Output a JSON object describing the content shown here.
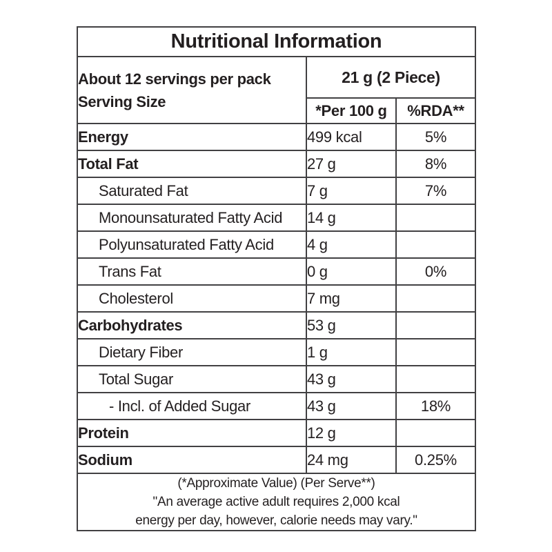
{
  "title": "Nutritional Information",
  "header": {
    "servings_line": "About 12 servings per pack",
    "serving_size_line": "Serving Size",
    "serving_amount": "21 g (2 Piece)",
    "per_100g_label": "*Per 100 g",
    "rda_label": "%RDA**"
  },
  "rows": [
    {
      "label": "Energy",
      "style": "bold",
      "per_100g": "499 kcal",
      "rda": "5%"
    },
    {
      "label": "Total Fat",
      "style": "bold",
      "per_100g": "27 g",
      "rda": "8%"
    },
    {
      "label": "Saturated Fat",
      "style": "sub",
      "per_100g": "7 g",
      "rda": "7%"
    },
    {
      "label": "Monounsaturated Fatty Acid",
      "style": "sub",
      "per_100g": "14 g",
      "rda": ""
    },
    {
      "label": "Polyunsaturated Fatty Acid",
      "style": "sub",
      "per_100g": "4 g",
      "rda": ""
    },
    {
      "label": "Trans Fat",
      "style": "sub",
      "per_100g": "0 g",
      "rda": "0%"
    },
    {
      "label": "Cholesterol",
      "style": "sub",
      "per_100g": "7 mg",
      "rda": ""
    },
    {
      "label": "Carbohydrates",
      "style": "bold",
      "per_100g": "53 g",
      "rda": ""
    },
    {
      "label": "Dietary Fiber",
      "style": "sub",
      "per_100g": "1 g",
      "rda": ""
    },
    {
      "label": "Total Sugar",
      "style": "sub",
      "per_100g": "43 g",
      "rda": ""
    },
    {
      "label": "- Incl. of Added Sugar",
      "style": "sub2",
      "per_100g": "43 g",
      "rda": "18%"
    },
    {
      "label": "Protein",
      "style": "bold",
      "per_100g": "12 g",
      "rda": ""
    },
    {
      "label": "Sodium",
      "style": "bold",
      "per_100g": "24 mg",
      "rda": "0.25%"
    }
  ],
  "footnotes": [
    "(*Approximate Value) (Per Serve**)",
    "\"An average active adult requires 2,000 kcal",
    "energy per day, however, calorie needs may vary.\""
  ],
  "colors": {
    "text": "#231f20",
    "border": "#414042",
    "background": "#ffffff"
  }
}
